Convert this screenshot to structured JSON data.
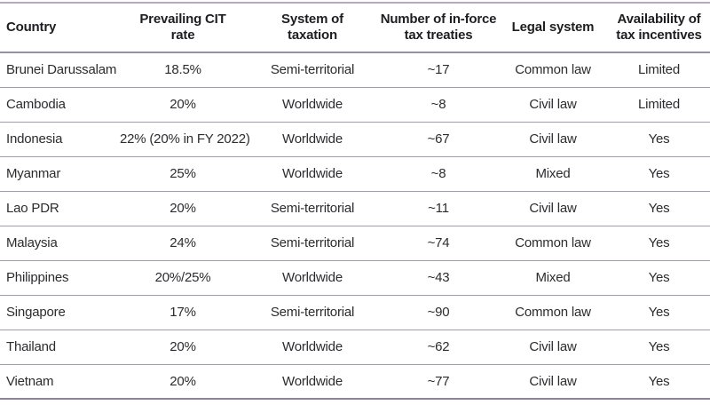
{
  "table": {
    "columns": [
      {
        "label": "Country",
        "align": "left"
      },
      {
        "label": "Prevailing CIT rate",
        "align": "center"
      },
      {
        "label": "System of taxation",
        "align": "center"
      },
      {
        "label": "Number of in-force tax treaties",
        "align": "center"
      },
      {
        "label": "Legal system",
        "align": "center"
      },
      {
        "label": "Availability of tax incentives",
        "align": "center"
      }
    ],
    "rows": [
      [
        "Brunei Darussalam",
        "18.5%",
        "Semi-territorial",
        "~17",
        "Common law",
        "Limited"
      ],
      [
        "Cambodia",
        "20%",
        "Worldwide",
        "~8",
        "Civil law",
        "Limited"
      ],
      [
        "Indonesia",
        "22% (20% in FY 2022)",
        "Worldwide",
        "~67",
        "Civil law",
        "Yes"
      ],
      [
        "Myanmar",
        "25%",
        "Worldwide",
        "~8",
        "Mixed",
        "Yes"
      ],
      [
        "Lao PDR",
        "20%",
        "Semi-territorial",
        "~11",
        "Civil law",
        "Yes"
      ],
      [
        "Malaysia",
        "24%",
        "Semi-territorial",
        "~74",
        "Common law",
        "Yes"
      ],
      [
        "Philippines",
        "20%/25%",
        "Worldwide",
        "~43",
        "Mixed",
        "Yes"
      ],
      [
        "Singapore",
        "17%",
        "Semi-territorial",
        "~90",
        "Common law",
        "Yes"
      ],
      [
        "Thailand",
        "20%",
        "Worldwide",
        "~62",
        "Civil law",
        "Yes"
      ],
      [
        "Vietnam",
        "20%",
        "Worldwide",
        "~77",
        "Civil law",
        "Yes"
      ]
    ]
  },
  "colors": {
    "border_top": "#b4abc0",
    "header_divider": "#978fa3",
    "row_divider": "#a49bb2",
    "border_bottom": "#8d8399",
    "header_text": "#1f1d21",
    "body_text": "#2d2b2f",
    "background": "#ffffff"
  }
}
